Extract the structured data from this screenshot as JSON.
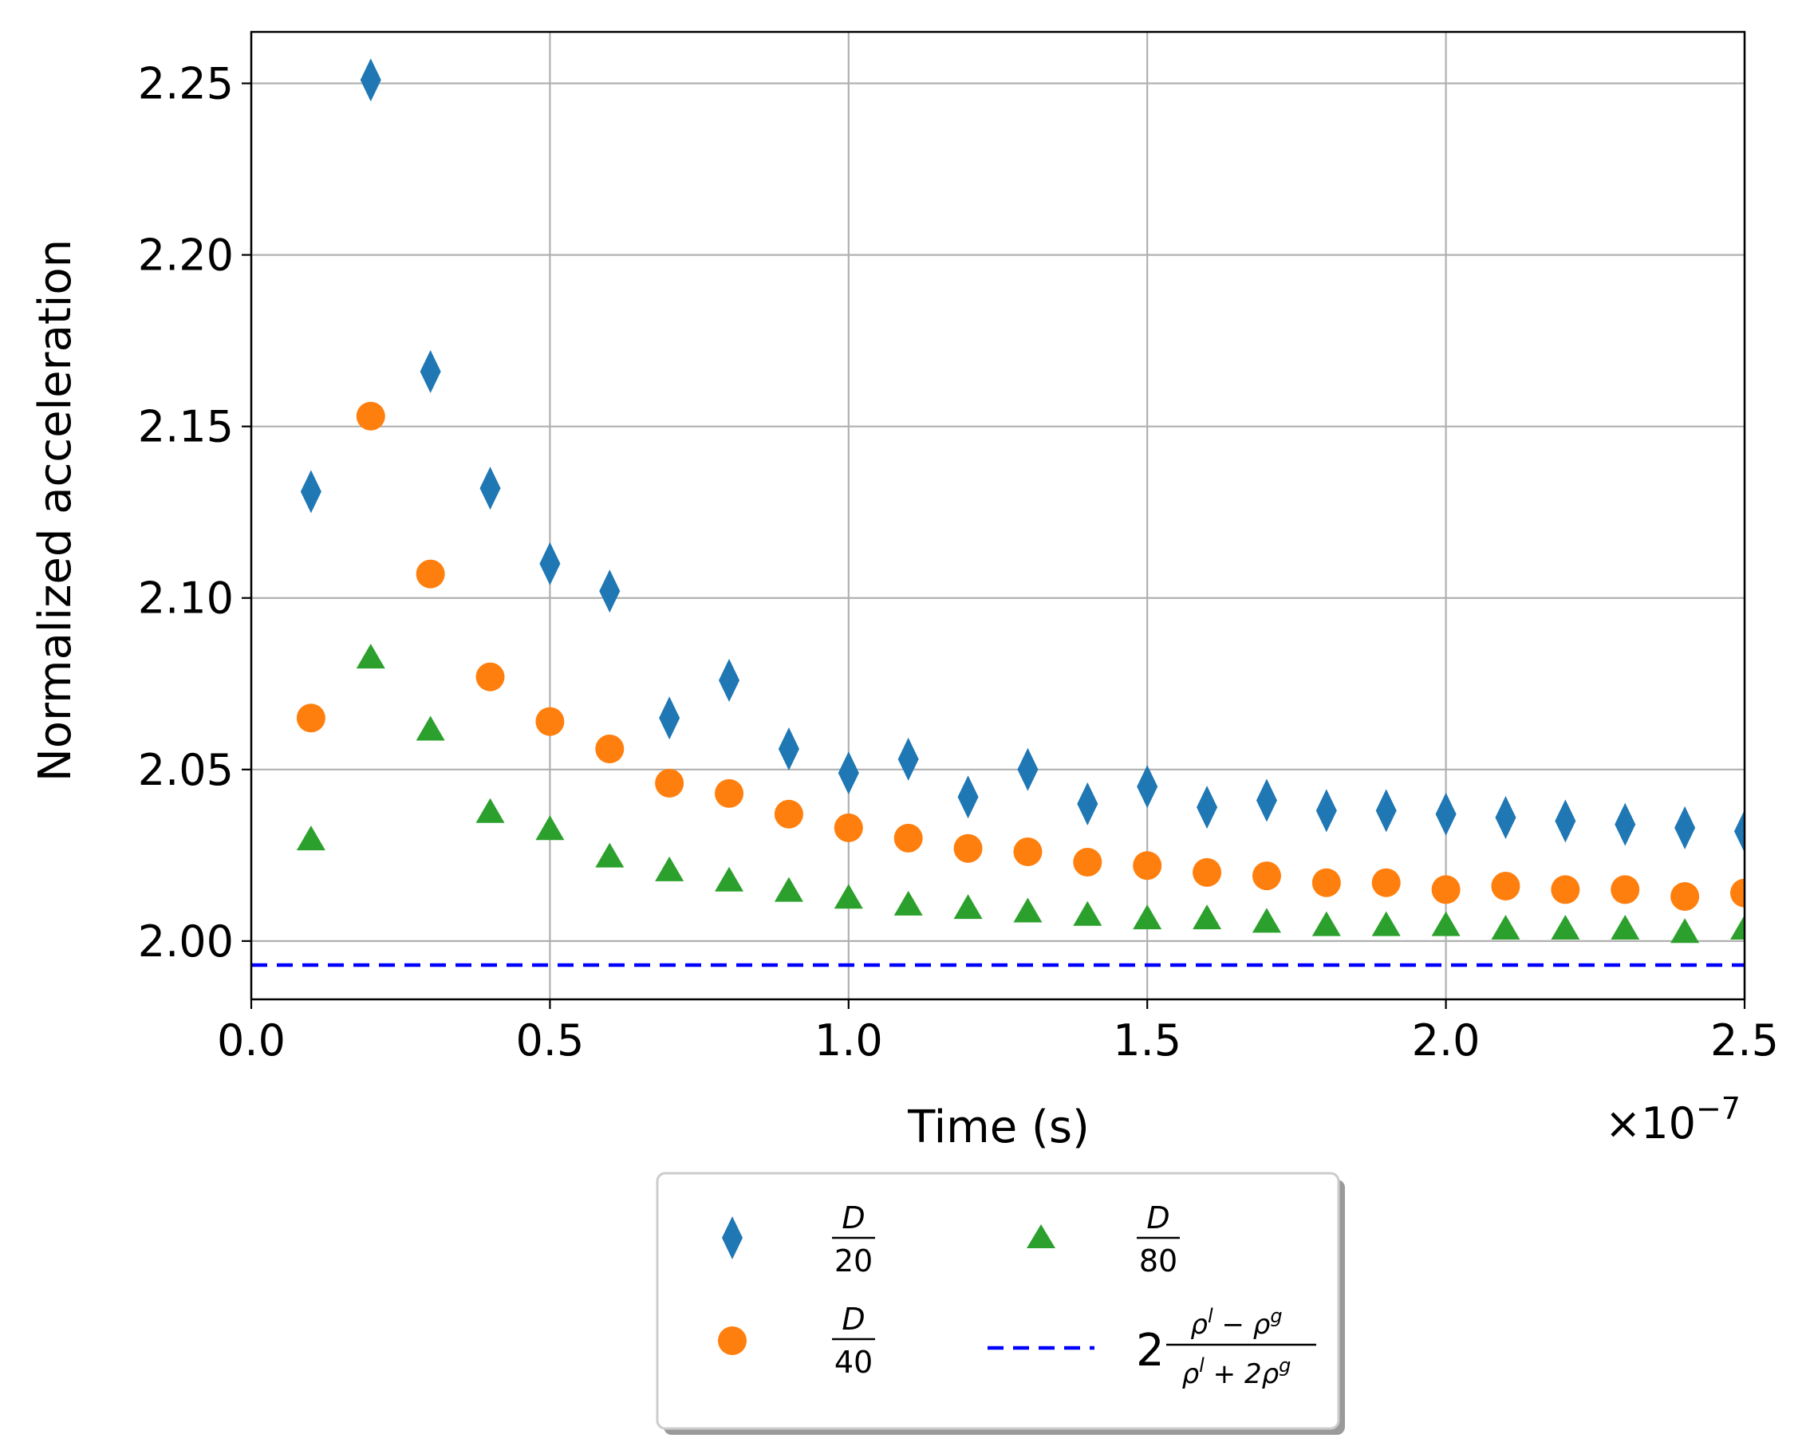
{
  "chart_data": {
    "type": "scatter",
    "xlabel": "Time (s)",
    "ylabel": "Normalized acceleration",
    "x_offset_label": "×10",
    "x_offset_exp": "−7",
    "xlim": [
      0.0,
      2.5
    ],
    "ylim": [
      1.983,
      2.265
    ],
    "x_scale_note": "x values in units of 1e-7 s",
    "x_ticks": [
      "0.0",
      "0.5",
      "1.0",
      "1.5",
      "2.0",
      "2.5"
    ],
    "x_tick_values": [
      0.0,
      0.5,
      1.0,
      1.5,
      2.0,
      2.5
    ],
    "y_ticks": [
      "2.00",
      "2.05",
      "2.10",
      "2.15",
      "2.20",
      "2.25"
    ],
    "y_tick_values": [
      2.0,
      2.05,
      2.1,
      2.15,
      2.2,
      2.25
    ],
    "grid": true,
    "legend_position": "below-center",
    "x": [
      0.1,
      0.2,
      0.3,
      0.4,
      0.5,
      0.6,
      0.7,
      0.8,
      0.9,
      1.0,
      1.1,
      1.2,
      1.3,
      1.4,
      1.5,
      1.6,
      1.7,
      1.8,
      1.9,
      2.0,
      2.1,
      2.2,
      2.3,
      2.4,
      2.5
    ],
    "series": [
      {
        "name": "D/20",
        "num": "D",
        "den": "20",
        "marker": "diamond",
        "color": "#1f77b4",
        "values": [
          2.131,
          2.251,
          2.166,
          2.132,
          2.11,
          2.102,
          2.065,
          2.076,
          2.056,
          2.049,
          2.053,
          2.042,
          2.05,
          2.04,
          2.045,
          2.039,
          2.041,
          2.038,
          2.038,
          2.037,
          2.036,
          2.035,
          2.034,
          2.033,
          2.032
        ]
      },
      {
        "name": "D/40",
        "num": "D",
        "den": "40",
        "marker": "circle",
        "color": "#ff7f0e",
        "values": [
          2.065,
          2.153,
          2.107,
          2.077,
          2.064,
          2.056,
          2.046,
          2.043,
          2.037,
          2.033,
          2.03,
          2.027,
          2.026,
          2.023,
          2.022,
          2.02,
          2.019,
          2.017,
          2.017,
          2.015,
          2.016,
          2.015,
          2.015,
          2.013,
          2.014
        ]
      },
      {
        "name": "D/80",
        "num": "D",
        "den": "80",
        "marker": "triangle",
        "color": "#2ca02c",
        "values": [
          2.029,
          2.082,
          2.061,
          2.037,
          2.032,
          2.024,
          2.02,
          2.017,
          2.014,
          2.012,
          2.01,
          2.009,
          2.008,
          2.007,
          2.006,
          2.006,
          2.005,
          2.004,
          2.004,
          2.004,
          2.003,
          2.003,
          2.003,
          2.002,
          2.003
        ]
      }
    ],
    "reference_line": {
      "name": "2(ρl − ρg)/(ρl + 2ρg)",
      "value": 1.993,
      "style": "dashed",
      "color": "#0000ff",
      "label_coef": "2",
      "label_num": "ρ",
      "label_num_sup1": "l",
      "label_num_mid": " − ρ",
      "label_num_sup2": "g",
      "label_den": "ρ",
      "label_den_sup1": "l",
      "label_den_mid": " + 2ρ",
      "label_den_sup2": "g"
    }
  }
}
